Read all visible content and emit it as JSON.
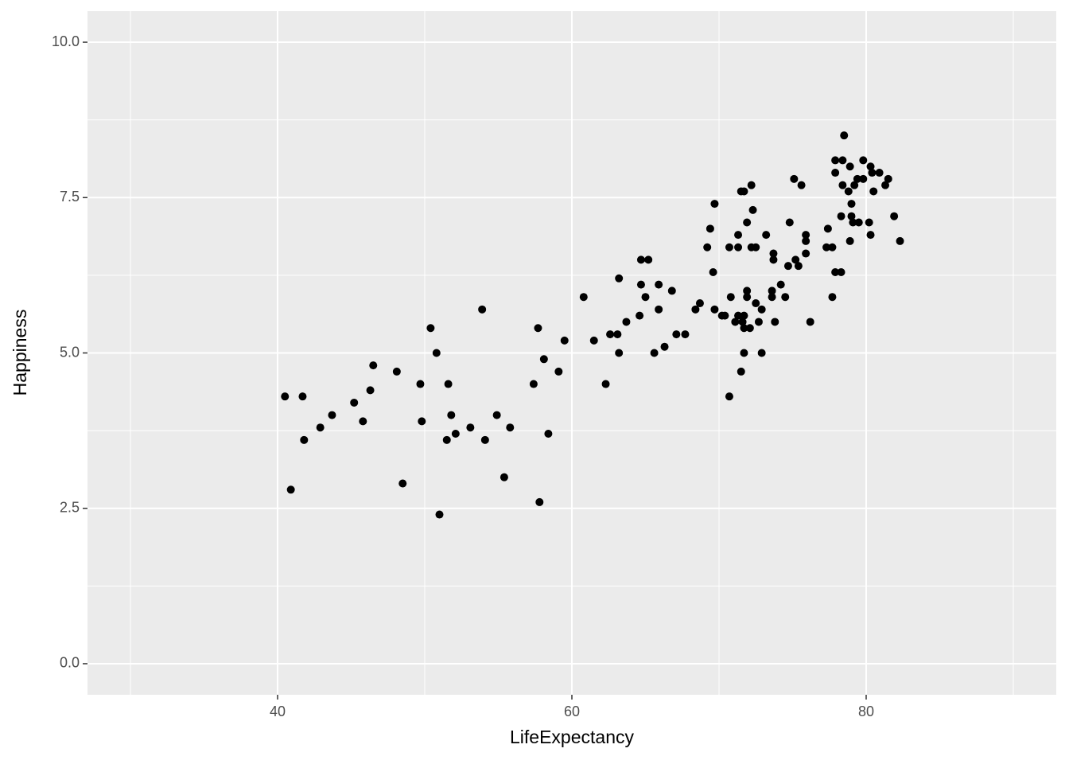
{
  "chart_data": {
    "type": "scatter",
    "x_label": "LifeExpectancy",
    "y_label": "Happiness",
    "xlim": [
      27.08,
      92.92
    ],
    "ylim": [
      -0.5,
      10.5
    ],
    "xticks": [
      40,
      60,
      80
    ],
    "yticks": [
      {
        "value": 0,
        "label": "0.0"
      },
      2.5,
      {
        "value": 5,
        "label": "5.0"
      },
      7.5,
      {
        "value": 10,
        "label": "10.0"
      }
    ],
    "grid": true,
    "color": "#000000",
    "x": [
      40.5,
      40.9,
      41.7,
      41.8,
      42.9,
      43.7,
      45.2,
      45.8,
      46.3,
      46.5,
      48.1,
      48.5,
      49.7,
      49.8,
      50.4,
      50.8,
      51.0,
      51.5,
      51.6,
      51.8,
      52.1,
      53.1,
      53.9,
      54.1,
      54.9,
      55.4,
      55.8,
      57.4,
      57.7,
      57.8,
      58.1,
      58.4,
      59.1,
      59.5,
      60.8,
      61.5,
      62.3,
      62.6,
      63.1,
      63.2,
      63.2,
      63.7,
      64.6,
      64.7,
      64.7,
      65.0,
      65.2,
      65.6,
      65.9,
      65.9,
      66.3,
      66.8,
      67.1,
      67.7,
      68.4,
      68.7,
      69.2,
      69.4,
      69.6,
      69.7,
      69.7,
      70.2,
      70.4,
      70.7,
      70.7,
      70.8,
      71.1,
      71.3,
      71.3,
      71.3,
      71.5,
      71.5,
      71.6,
      71.7,
      71.7,
      71.7,
      71.7,
      71.9,
      71.9,
      71.9,
      72.1,
      72.2,
      72.2,
      72.3,
      72.5,
      72.5,
      72.7,
      72.9,
      72.9,
      73.2,
      73.6,
      73.6,
      73.7,
      73.7,
      73.8,
      74.2,
      74.5,
      74.7,
      74.8,
      75.1,
      75.2,
      75.4,
      75.6,
      75.9,
      75.9,
      75.9,
      76.2,
      77.3,
      77.4,
      77.7,
      77.7,
      77.9,
      77.9,
      77.9,
      78.3,
      78.3,
      78.4,
      78.4,
      78.5,
      78.8,
      78.9,
      78.9,
      79.0,
      79.0,
      79.1,
      79.2,
      79.4,
      79.5,
      79.8,
      79.8,
      80.2,
      80.3,
      80.3,
      80.4,
      80.5,
      80.9,
      81.3,
      81.5,
      81.9,
      82.3
    ],
    "y": [
      4.3,
      2.8,
      4.3,
      3.6,
      3.8,
      4.0,
      4.2,
      3.9,
      4.4,
      4.8,
      4.7,
      2.9,
      4.5,
      3.9,
      5.4,
      5.0,
      2.4,
      3.6,
      4.5,
      4.0,
      3.7,
      3.8,
      5.7,
      3.6,
      4.0,
      3.0,
      3.8,
      4.5,
      5.4,
      2.6,
      4.9,
      3.7,
      4.7,
      5.2,
      5.9,
      5.2,
      4.5,
      5.3,
      5.3,
      6.2,
      5.0,
      5.5,
      5.6,
      6.5,
      6.1,
      5.9,
      6.5,
      5.0,
      6.1,
      5.7,
      5.1,
      6.0,
      5.3,
      5.3,
      5.7,
      5.8,
      6.7,
      7.0,
      6.3,
      7.4,
      5.7,
      5.6,
      5.6,
      4.3,
      6.7,
      5.9,
      5.5,
      5.6,
      6.9,
      6.7,
      4.7,
      7.6,
      5.5,
      5.4,
      7.6,
      5.6,
      5.0,
      5.9,
      6.0,
      7.1,
      5.4,
      6.7,
      7.7,
      7.3,
      6.7,
      5.8,
      5.5,
      5.7,
      5.0,
      6.9,
      5.9,
      6.0,
      6.6,
      6.5,
      5.5,
      6.1,
      5.9,
      6.4,
      7.1,
      7.8,
      6.5,
      6.4,
      7.7,
      6.8,
      6.9,
      6.6,
      5.5,
      6.7,
      7.0,
      6.7,
      5.9,
      8.1,
      7.9,
      6.3,
      6.3,
      7.2,
      8.1,
      7.7,
      8.5,
      7.6,
      6.8,
      8.0,
      7.4,
      7.2,
      7.1,
      7.7,
      7.8,
      7.1,
      8.1,
      7.8,
      7.1,
      8.0,
      6.9,
      7.9,
      7.6,
      7.9,
      7.7,
      7.8,
      7.2,
      6.8
    ]
  }
}
